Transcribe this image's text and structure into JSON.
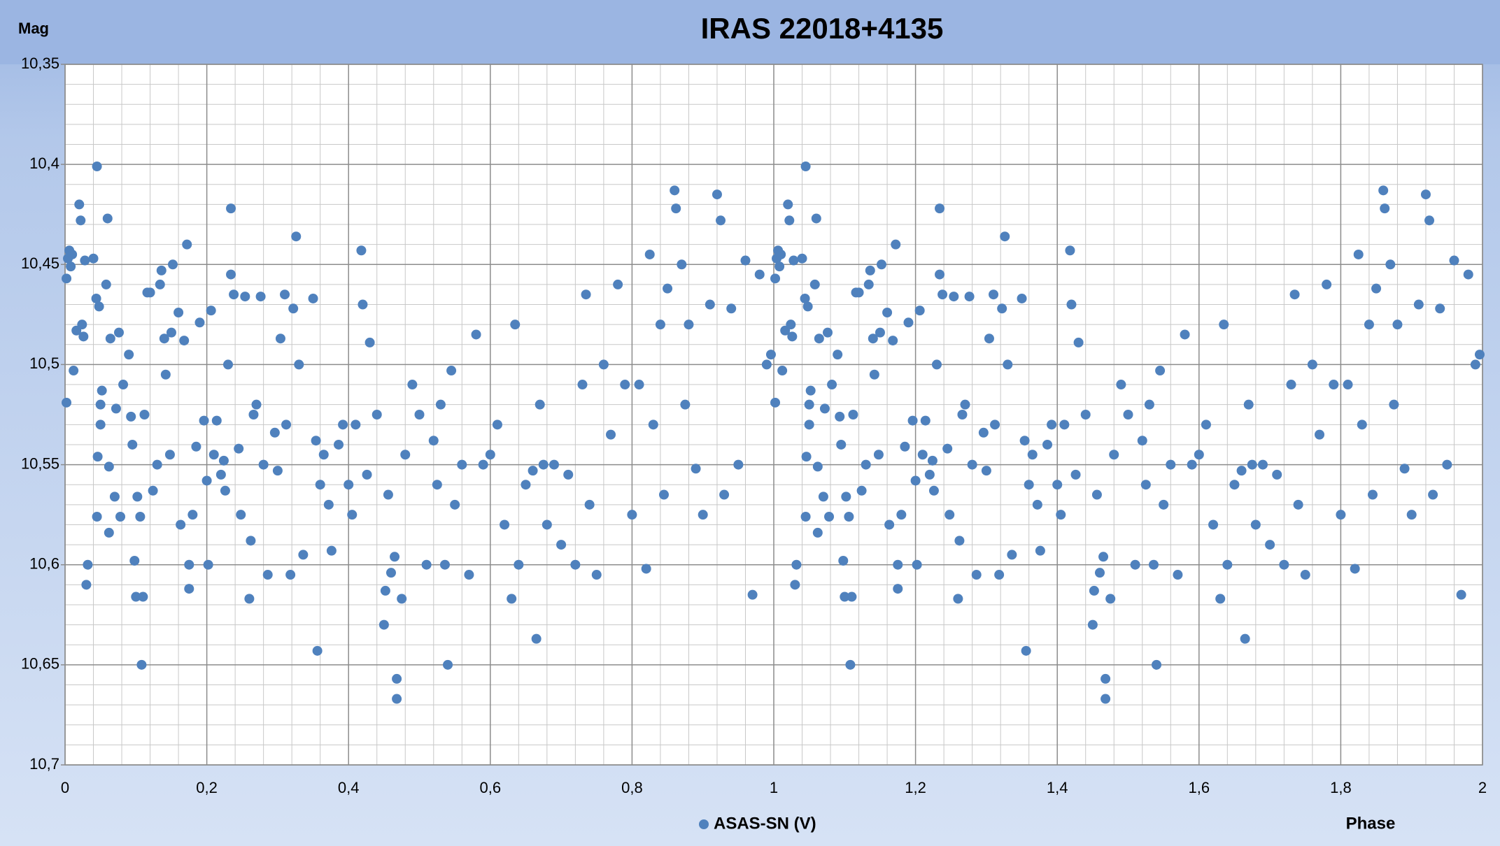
{
  "chart_data": {
    "type": "scatter",
    "title": "IRAS 22018+4135",
    "xlabel": "Phase",
    "ylabel": "Mag",
    "xlim": [
      0,
      2
    ],
    "ylim": [
      10.35,
      10.7
    ],
    "y_inverted": true,
    "grid": true,
    "legend": "bottom",
    "xticks": [
      0,
      {
        "value": 0.2,
        "label": "0,2"
      },
      {
        "value": 0.4,
        "label": "0,4"
      },
      {
        "value": 0.6,
        "label": "0,6"
      },
      {
        "value": 0.8,
        "label": "0,8"
      },
      1,
      {
        "value": 1.2,
        "label": "1,2"
      },
      {
        "value": 1.4,
        "label": "1,4"
      },
      {
        "value": 1.6,
        "label": "1,6"
      },
      {
        "value": 1.8,
        "label": "1,8"
      },
      2
    ],
    "yticks": [
      {
        "value": 10.35,
        "label": "10,35"
      },
      {
        "value": 10.4,
        "label": "10,4"
      },
      {
        "value": 10.45,
        "label": "10,45"
      },
      {
        "value": 10.5,
        "label": "10,5"
      },
      {
        "value": 10.55,
        "label": "10,55"
      },
      {
        "value": 10.6,
        "label": "10,6"
      },
      {
        "value": 10.65,
        "label": "10,65"
      },
      {
        "value": 10.7,
        "label": "10,7"
      }
    ],
    "x": [
      0.002,
      0.002,
      0.004,
      0.006,
      0.008,
      0.01,
      0.012,
      0.016,
      0.02,
      0.022,
      0.024,
      0.026,
      0.028,
      0.03,
      0.032,
      0.04,
      0.045,
      0.044,
      0.048,
      0.05,
      0.05,
      0.052,
      0.045,
      0.046,
      0.058,
      0.06,
      0.062,
      0.062,
      0.064,
      0.07,
      0.072,
      0.076,
      0.078,
      0.082,
      0.09,
      0.093,
      0.095,
      0.098,
      0.1,
      0.102,
      0.106,
      0.108,
      0.11,
      0.112,
      0.116,
      0.12,
      0.124,
      0.13,
      0.134,
      0.136,
      0.14,
      0.142,
      0.148,
      0.15,
      0.152,
      0.16,
      0.163,
      0.168,
      0.172,
      0.175,
      0.175,
      0.18,
      0.185,
      0.19,
      0.196,
      0.2,
      0.202,
      0.206,
      0.21,
      0.214,
      0.22,
      0.224,
      0.226,
      0.23,
      0.234,
      0.234,
      0.238,
      0.245,
      0.248,
      0.254,
      0.26,
      0.262,
      0.266,
      0.27,
      0.276,
      0.28,
      0.286,
      0.296,
      0.3,
      0.304,
      0.31,
      0.312,
      0.318,
      0.322,
      0.326,
      0.33,
      0.336,
      0.35,
      0.354,
      0.356,
      0.36,
      0.365,
      0.372,
      0.376,
      0.386,
      0.392,
      0.4,
      0.405,
      0.41,
      0.418,
      0.42,
      0.426,
      0.43,
      0.44,
      0.45,
      0.452,
      0.456,
      0.46,
      0.465,
      0.468,
      0.468,
      0.475,
      0.48,
      0.49,
      0.5,
      0.51,
      0.52,
      0.525,
      0.53,
      0.536,
      0.54,
      0.545,
      0.55,
      0.56,
      0.57,
      0.58,
      0.59,
      0.6,
      0.61,
      0.62,
      0.63,
      0.635,
      0.64,
      0.65,
      0.66,
      0.665,
      0.67,
      0.675,
      0.68,
      0.69,
      0.7,
      0.71,
      0.72,
      0.73,
      0.735,
      0.74,
      0.75,
      0.76,
      0.77,
      0.78,
      0.79,
      0.8,
      0.81,
      0.82,
      0.825,
      0.83,
      0.84,
      0.845,
      0.85,
      0.86,
      0.862,
      0.87,
      0.875,
      0.88,
      0.89,
      0.9,
      0.91,
      0.92,
      0.925,
      0.93,
      0.94,
      0.95,
      0.96,
      0.97,
      0.98,
      0.99,
      0.996,
      1.002,
      1.002,
      1.004,
      1.006,
      1.008,
      1.01,
      1.012,
      1.016,
      1.02,
      1.022,
      1.024,
      1.026,
      1.028,
      1.03,
      1.032,
      1.04,
      1.045,
      1.044,
      1.048,
      1.05,
      1.05,
      1.052,
      1.045,
      1.046,
      1.058,
      1.06,
      1.062,
      1.062,
      1.064,
      1.07,
      1.072,
      1.076,
      1.078,
      1.082,
      1.09,
      1.093,
      1.095,
      1.098,
      1.1,
      1.102,
      1.106,
      1.108,
      1.11,
      1.112,
      1.116,
      1.12,
      1.124,
      1.13,
      1.134,
      1.136,
      1.14,
      1.142,
      1.148,
      1.15,
      1.152,
      1.16,
      1.163,
      1.168,
      1.172,
      1.175,
      1.175,
      1.18,
      1.185,
      1.19,
      1.196,
      1.2,
      1.202,
      1.206,
      1.21,
      1.214,
      1.22,
      1.224,
      1.226,
      1.23,
      1.234,
      1.234,
      1.238,
      1.245,
      1.248,
      1.254,
      1.26,
      1.262,
      1.266,
      1.27,
      1.276,
      1.28,
      1.286,
      1.296,
      1.3,
      1.304,
      1.31,
      1.312,
      1.318,
      1.322,
      1.326,
      1.33,
      1.336,
      1.35,
      1.354,
      1.356,
      1.36,
      1.365,
      1.372,
      1.376,
      1.386,
      1.392,
      1.4,
      1.405,
      1.41,
      1.418,
      1.42,
      1.426,
      1.43,
      1.44,
      1.45,
      1.452,
      1.456,
      1.46,
      1.465,
      1.468,
      1.468,
      1.475,
      1.48,
      1.49,
      1.5,
      1.51,
      1.52,
      1.525,
      1.53,
      1.536,
      1.54,
      1.545,
      1.55,
      1.56,
      1.57,
      1.58,
      1.59,
      1.6,
      1.61,
      1.62,
      1.63,
      1.635,
      1.64,
      1.65,
      1.66,
      1.665,
      1.67,
      1.675,
      1.68,
      1.69,
      1.7,
      1.71,
      1.72,
      1.73,
      1.735,
      1.74,
      1.75,
      1.76,
      1.77,
      1.78,
      1.79,
      1.8,
      1.81,
      1.82,
      1.825,
      1.83,
      1.84,
      1.845,
      1.85,
      1.86,
      1.862,
      1.87,
      1.875,
      1.88,
      1.89,
      1.9,
      1.91,
      1.92,
      1.925,
      1.93,
      1.94,
      1.95,
      1.96,
      1.97,
      1.98,
      1.99,
      1.996
    ],
    "series": [
      {
        "name": "ASAS-SN (V)",
        "color": "#4f81bd",
        "values": [
          10.519,
          10.457,
          10.447,
          10.443,
          10.451,
          10.445,
          10.503,
          10.483,
          10.42,
          10.428,
          10.48,
          10.486,
          10.448,
          10.61,
          10.6,
          10.447,
          10.401,
          10.467,
          10.471,
          10.52,
          10.53,
          10.513,
          10.576,
          10.546,
          10.46,
          10.427,
          10.551,
          10.584,
          10.487,
          10.566,
          10.522,
          10.484,
          10.576,
          10.51,
          10.495,
          10.526,
          10.54,
          10.598,
          10.616,
          10.566,
          10.576,
          10.65,
          10.616,
          10.525,
          10.464,
          10.464,
          10.563,
          10.55,
          10.46,
          10.453,
          10.487,
          10.505,
          10.545,
          10.484,
          10.45,
          10.474,
          10.58,
          10.488,
          10.44,
          10.6,
          10.612,
          10.575,
          10.541,
          10.479,
          10.528,
          10.558,
          10.6,
          10.473,
          10.545,
          10.528,
          10.555,
          10.548,
          10.563,
          10.5,
          10.422,
          10.455,
          10.465,
          10.542,
          10.575,
          10.466,
          10.617,
          10.588,
          10.525,
          10.52,
          10.466,
          10.55,
          10.605,
          10.534,
          10.553,
          10.487,
          10.465,
          10.53,
          10.605,
          10.472,
          10.436,
          10.5,
          10.595,
          10.467,
          10.538,
          10.643,
          10.56,
          10.545,
          10.57,
          10.593,
          10.54,
          10.53,
          10.56,
          10.575,
          10.53,
          10.443,
          10.47,
          10.555,
          10.489,
          10.525,
          10.63,
          10.613,
          10.565,
          10.604,
          10.596,
          10.667,
          10.657,
          10.617,
          10.545,
          10.51,
          10.525,
          10.6,
          10.538,
          10.56,
          10.52,
          10.6,
          10.65,
          10.503,
          10.57,
          10.55,
          10.605,
          10.485,
          10.55,
          10.545,
          10.53,
          10.58,
          10.617,
          10.48,
          10.6,
          10.56,
          10.553,
          10.637,
          10.52,
          10.55,
          10.58,
          10.55,
          10.59,
          10.555,
          10.6,
          10.51,
          10.465,
          10.57,
          10.605,
          10.5,
          10.535,
          10.46,
          10.51,
          10.575,
          10.51,
          10.602,
          10.445,
          10.53,
          10.48,
          10.565,
          10.462,
          10.413,
          10.422,
          10.45,
          10.52,
          10.48,
          10.552,
          10.575,
          10.47,
          10.415,
          10.428,
          10.565,
          10.472,
          10.55,
          10.448,
          10.615,
          10.455,
          10.5,
          10.495,
          10.519,
          10.457,
          10.447,
          10.443,
          10.451,
          10.445,
          10.503,
          10.483,
          10.42,
          10.428,
          10.48,
          10.486,
          10.448,
          10.61,
          10.6,
          10.447,
          10.401,
          10.467,
          10.471,
          10.52,
          10.53,
          10.513,
          10.576,
          10.546,
          10.46,
          10.427,
          10.551,
          10.584,
          10.487,
          10.566,
          10.522,
          10.484,
          10.576,
          10.51,
          10.495,
          10.526,
          10.54,
          10.598,
          10.616,
          10.566,
          10.576,
          10.65,
          10.616,
          10.525,
          10.464,
          10.464,
          10.563,
          10.55,
          10.46,
          10.453,
          10.487,
          10.505,
          10.545,
          10.484,
          10.45,
          10.474,
          10.58,
          10.488,
          10.44,
          10.6,
          10.612,
          10.575,
          10.541,
          10.479,
          10.528,
          10.558,
          10.6,
          10.473,
          10.545,
          10.528,
          10.555,
          10.548,
          10.563,
          10.5,
          10.422,
          10.455,
          10.465,
          10.542,
          10.575,
          10.466,
          10.617,
          10.588,
          10.525,
          10.52,
          10.466,
          10.55,
          10.605,
          10.534,
          10.553,
          10.487,
          10.465,
          10.53,
          10.605,
          10.472,
          10.436,
          10.5,
          10.595,
          10.467,
          10.538,
          10.643,
          10.56,
          10.545,
          10.57,
          10.593,
          10.54,
          10.53,
          10.56,
          10.575,
          10.53,
          10.443,
          10.47,
          10.555,
          10.489,
          10.525,
          10.63,
          10.613,
          10.565,
          10.604,
          10.596,
          10.667,
          10.657,
          10.617,
          10.545,
          10.51,
          10.525,
          10.6,
          10.538,
          10.56,
          10.52,
          10.6,
          10.65,
          10.503,
          10.57,
          10.55,
          10.605,
          10.485,
          10.55,
          10.545,
          10.53,
          10.58,
          10.617,
          10.48,
          10.6,
          10.56,
          10.553,
          10.637,
          10.52,
          10.55,
          10.58,
          10.55,
          10.59,
          10.555,
          10.6,
          10.51,
          10.465,
          10.57,
          10.605,
          10.5,
          10.535,
          10.46,
          10.51,
          10.575,
          10.51,
          10.602,
          10.445,
          10.53,
          10.48,
          10.565,
          10.462,
          10.413,
          10.422,
          10.45,
          10.52,
          10.48,
          10.552,
          10.575,
          10.47,
          10.415,
          10.428,
          10.565,
          10.472,
          10.55,
          10.448,
          10.615,
          10.455,
          10.5,
          10.495
        ]
      }
    ]
  }
}
